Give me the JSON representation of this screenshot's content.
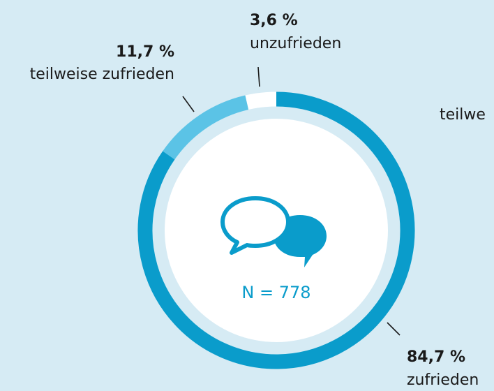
{
  "chart_data": {
    "type": "pie",
    "categories": [
      "zufrieden",
      "teilweise zufrieden",
      "unzufrieden"
    ],
    "values": [
      84.7,
      11.7,
      3.6
    ],
    "value_labels": [
      "84,7 %",
      "11,7 %",
      "3,6 %"
    ],
    "colors": [
      "#0a9ccb",
      "#5bc3e6",
      "#ffffff"
    ],
    "annotations": [
      "N = 778",
      "teilwe"
    ]
  }
}
